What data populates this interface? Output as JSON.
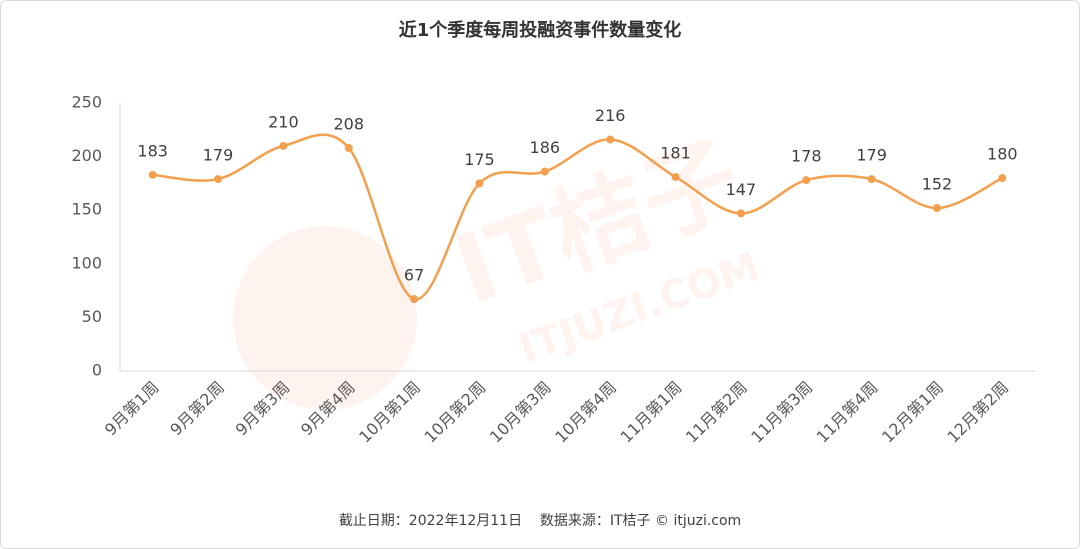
{
  "chart_data": {
    "type": "line",
    "title": "近1个季度每周投融资事件数量变化",
    "categories": [
      "9月第1周",
      "9月第2周",
      "9月第3周",
      "9月第4周",
      "10月第1周",
      "10月第2周",
      "10月第3周",
      "10月第4周",
      "11月第1周",
      "11月第2周",
      "11月第3周",
      "11月第4周",
      "12月第1周",
      "12月第2周"
    ],
    "values": [
      183,
      179,
      210,
      208,
      67,
      175,
      186,
      216,
      181,
      147,
      178,
      179,
      152,
      180
    ],
    "color": "#f2a04e",
    "ylim": [
      0,
      250
    ],
    "yticks": [
      0,
      50,
      100,
      150,
      200,
      250
    ],
    "grid": false,
    "source": "截止日期：2022年12月11日    数据来源：IT桔子 © itjuzi.com",
    "watermark": "IT桔子",
    "watermark_sub": "ITJUZI.COM"
  }
}
